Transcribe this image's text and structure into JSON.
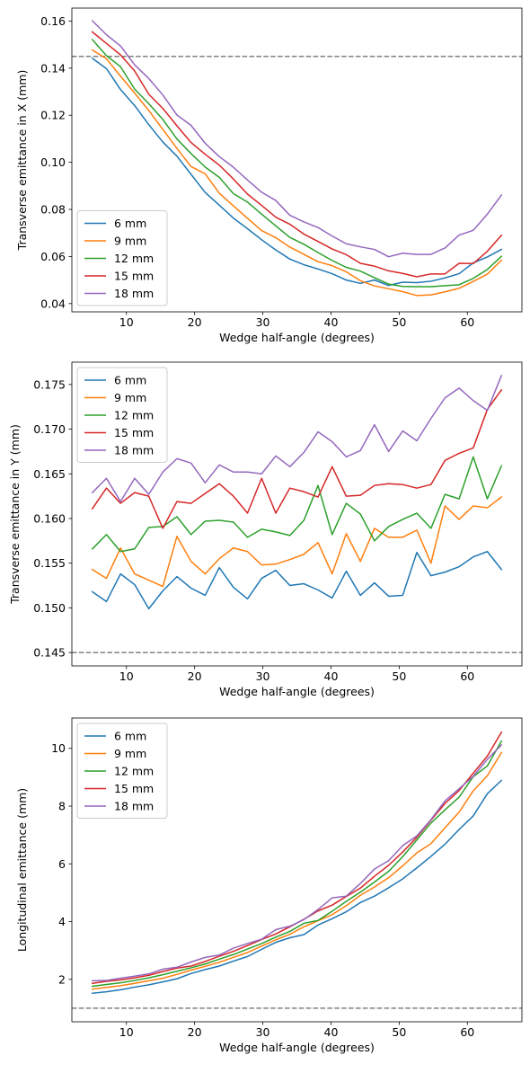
{
  "chart_data": [
    {
      "type": "line",
      "xlabel": "Wedge half-angle (degrees)",
      "ylabel": "Transverse emittance in X (mm)",
      "xlim": [
        2.0,
        68.0
      ],
      "ylim": [
        0.0365,
        0.1655
      ],
      "xticks": [
        10,
        20,
        30,
        40,
        50,
        60
      ],
      "yticks": [
        0.04,
        0.06,
        0.08,
        0.1,
        0.12,
        0.14,
        0.16
      ],
      "ytick_labels": [
        "0.04",
        "0.06",
        "0.08",
        "0.10",
        "0.12",
        "0.14",
        "0.16"
      ],
      "grid": false,
      "legend_position": "lower-left",
      "hline": 0.145,
      "x": [
        5,
        7.07,
        9.14,
        11.21,
        13.28,
        15.34,
        17.41,
        19.48,
        21.55,
        23.62,
        25.69,
        27.76,
        29.83,
        31.9,
        33.97,
        36.03,
        38.1,
        40.17,
        42.24,
        44.31,
        46.38,
        48.45,
        50.52,
        52.59,
        54.66,
        56.72,
        58.79,
        60.86,
        62.93,
        65
      ],
      "series": [
        {
          "name": "6 mm",
          "color": "#1f77b4",
          "values": [
            0.1442,
            0.1398,
            0.1309,
            0.1241,
            0.116,
            0.1086,
            0.1026,
            0.0949,
            0.0872,
            0.0818,
            0.0763,
            0.0718,
            0.0671,
            0.0628,
            0.0589,
            0.0565,
            0.0547,
            0.0527,
            0.05,
            0.0486,
            0.05,
            0.0477,
            0.0491,
            0.0489,
            0.0495,
            0.0509,
            0.0527,
            0.0573,
            0.0598,
            0.063
          ]
        },
        {
          "name": "9 mm",
          "color": "#ff7f0e",
          "values": [
            0.1477,
            0.144,
            0.1366,
            0.1294,
            0.122,
            0.114,
            0.1059,
            0.0982,
            0.0951,
            0.0869,
            0.0815,
            0.0762,
            0.071,
            0.068,
            0.064,
            0.0609,
            0.0578,
            0.0561,
            0.0535,
            0.0497,
            0.0475,
            0.0463,
            0.0451,
            0.0434,
            0.0437,
            0.045,
            0.0465,
            0.0494,
            0.0525,
            0.0584
          ]
        },
        {
          "name": "12 mm",
          "color": "#2ca02c",
          "values": [
            0.1521,
            0.1453,
            0.1406,
            0.1311,
            0.1249,
            0.1182,
            0.1099,
            0.1037,
            0.098,
            0.0936,
            0.0867,
            0.0831,
            0.078,
            0.073,
            0.0681,
            0.0652,
            0.0617,
            0.0583,
            0.0554,
            0.0538,
            0.051,
            0.0483,
            0.0473,
            0.0472,
            0.0472,
            0.0476,
            0.048,
            0.0507,
            0.0545,
            0.0601
          ]
        },
        {
          "name": "15 mm",
          "color": "#d62728",
          "values": [
            0.1554,
            0.1505,
            0.1456,
            0.1388,
            0.1289,
            0.1229,
            0.1155,
            0.1084,
            0.1034,
            0.0988,
            0.0929,
            0.0865,
            0.0817,
            0.0767,
            0.0737,
            0.0695,
            0.0664,
            0.0632,
            0.0608,
            0.0571,
            0.0559,
            0.0539,
            0.0528,
            0.0514,
            0.0526,
            0.0526,
            0.0571,
            0.057,
            0.0622,
            0.069
          ]
        },
        {
          "name": "18 mm",
          "color": "#9467bd",
          "values": [
            0.1601,
            0.1542,
            0.1494,
            0.1414,
            0.1356,
            0.1286,
            0.1201,
            0.1157,
            0.1081,
            0.1024,
            0.0979,
            0.0925,
            0.0873,
            0.0838,
            0.0775,
            0.0747,
            0.0723,
            0.0687,
            0.0654,
            0.0641,
            0.063,
            0.0599,
            0.0614,
            0.0609,
            0.0609,
            0.0636,
            0.0691,
            0.0711,
            0.078,
            0.0861
          ]
        }
      ]
    },
    {
      "type": "line",
      "xlabel": "Wedge half-angle (degrees)",
      "ylabel": "Transverse emittance in Y (mm)",
      "xlim": [
        2.0,
        68.0
      ],
      "ylim": [
        0.1435,
        0.1775
      ],
      "xticks": [
        10,
        20,
        30,
        40,
        50,
        60
      ],
      "yticks": [
        0.145,
        0.15,
        0.155,
        0.16,
        0.165,
        0.17,
        0.175
      ],
      "ytick_labels": [
        "0.145",
        "0.150",
        "0.155",
        "0.160",
        "0.165",
        "0.170",
        "0.175"
      ],
      "grid": false,
      "legend_position": "upper-left",
      "hline": 0.145,
      "x": [
        5,
        7.07,
        9.14,
        11.21,
        13.28,
        15.34,
        17.41,
        19.48,
        21.55,
        23.62,
        25.69,
        27.76,
        29.83,
        31.9,
        33.97,
        36.03,
        38.1,
        40.17,
        42.24,
        44.31,
        46.38,
        48.45,
        50.52,
        52.59,
        54.66,
        56.72,
        58.79,
        60.86,
        62.93,
        65
      ],
      "series": [
        {
          "name": "6 mm",
          "color": "#1f77b4",
          "values": [
            0.1518,
            0.1507,
            0.1538,
            0.1526,
            0.1499,
            0.1519,
            0.1535,
            0.1522,
            0.1514,
            0.1545,
            0.1523,
            0.151,
            0.1533,
            0.1542,
            0.1525,
            0.1527,
            0.152,
            0.1511,
            0.1541,
            0.1514,
            0.1528,
            0.1513,
            0.1514,
            0.1562,
            0.1536,
            0.154,
            0.1546,
            0.1557,
            0.1563,
            0.1543
          ]
        },
        {
          "name": "9 mm",
          "color": "#ff7f0e",
          "values": [
            0.1543,
            0.1533,
            0.1567,
            0.1538,
            0.1531,
            0.1524,
            0.158,
            0.1552,
            0.1538,
            0.1555,
            0.1567,
            0.1563,
            0.1548,
            0.1549,
            0.1554,
            0.156,
            0.1573,
            0.1538,
            0.1583,
            0.1552,
            0.1589,
            0.1579,
            0.1579,
            0.1587,
            0.155,
            0.1614,
            0.1599,
            0.1614,
            0.1612,
            0.1624
          ]
        },
        {
          "name": "12 mm",
          "color": "#2ca02c",
          "values": [
            0.1566,
            0.1582,
            0.1563,
            0.1566,
            0.159,
            0.1591,
            0.1602,
            0.1582,
            0.1597,
            0.1598,
            0.1596,
            0.1579,
            0.1588,
            0.1585,
            0.1581,
            0.1598,
            0.1637,
            0.1582,
            0.1617,
            0.1605,
            0.1575,
            0.1591,
            0.1599,
            0.1606,
            0.1589,
            0.1627,
            0.1622,
            0.1669,
            0.1622,
            0.1659
          ]
        },
        {
          "name": "15 mm",
          "color": "#d62728",
          "values": [
            0.1611,
            0.1634,
            0.1617,
            0.1629,
            0.1625,
            0.1589,
            0.1619,
            0.1617,
            0.1628,
            0.1639,
            0.1625,
            0.1606,
            0.1645,
            0.1606,
            0.1634,
            0.163,
            0.1624,
            0.1658,
            0.1625,
            0.1626,
            0.1637,
            0.1639,
            0.1638,
            0.1634,
            0.1638,
            0.1665,
            0.1673,
            0.1679,
            0.1722,
            0.1744
          ]
        },
        {
          "name": "18 mm",
          "color": "#9467bd",
          "values": [
            0.1629,
            0.1645,
            0.1619,
            0.1645,
            0.1627,
            0.1652,
            0.1667,
            0.1662,
            0.164,
            0.166,
            0.1652,
            0.1652,
            0.165,
            0.167,
            0.1658,
            0.1674,
            0.1697,
            0.1686,
            0.1669,
            0.1676,
            0.1705,
            0.1675,
            0.1698,
            0.1687,
            0.1712,
            0.1735,
            0.1746,
            0.1732,
            0.1721,
            0.176
          ]
        }
      ]
    },
    {
      "type": "line",
      "xlabel": "Wedge half-angle (degrees)",
      "ylabel": "Longitudinal emittance (mm)",
      "xlim": [
        2.0,
        68.0
      ],
      "ylim": [
        0.53,
        11.05
      ],
      "xticks": [
        10,
        20,
        30,
        40,
        50,
        60
      ],
      "yticks": [
        2,
        4,
        6,
        8,
        10
      ],
      "ytick_labels": [
        "2",
        "4",
        "6",
        "8",
        "10"
      ],
      "grid": false,
      "legend_position": "upper-left",
      "hline": 1.0,
      "x": [
        5,
        7.07,
        9.14,
        11.21,
        13.28,
        15.34,
        17.41,
        19.48,
        21.55,
        23.62,
        25.69,
        27.76,
        29.83,
        31.9,
        33.97,
        36.03,
        38.1,
        40.17,
        42.24,
        44.31,
        46.38,
        48.45,
        50.52,
        52.59,
        54.66,
        56.72,
        58.79,
        60.86,
        62.93,
        65
      ],
      "series": [
        {
          "name": "6 mm",
          "color": "#1f77b4",
          "values": [
            1.52,
            1.57,
            1.64,
            1.73,
            1.81,
            1.91,
            2.02,
            2.2,
            2.34,
            2.46,
            2.63,
            2.79,
            3.04,
            3.28,
            3.44,
            3.55,
            3.88,
            4.1,
            4.34,
            4.66,
            4.88,
            5.17,
            5.48,
            5.86,
            6.26,
            6.68,
            7.19,
            7.66,
            8.43,
            8.89
          ]
        },
        {
          "name": "9 mm",
          "color": "#ff7f0e",
          "values": [
            1.66,
            1.72,
            1.78,
            1.86,
            1.95,
            2.04,
            2.17,
            2.32,
            2.45,
            2.59,
            2.76,
            2.93,
            3.15,
            3.37,
            3.56,
            3.82,
            4.03,
            4.24,
            4.55,
            4.91,
            5.2,
            5.52,
            5.93,
            6.38,
            6.7,
            7.25,
            7.79,
            8.53,
            9.05,
            9.85
          ]
        },
        {
          "name": "12 mm",
          "color": "#2ca02c",
          "values": [
            1.76,
            1.82,
            1.88,
            1.96,
            2.05,
            2.16,
            2.28,
            2.4,
            2.53,
            2.7,
            2.86,
            3.05,
            3.24,
            3.46,
            3.66,
            3.94,
            4.04,
            4.36,
            4.7,
            5.02,
            5.37,
            5.74,
            6.25,
            6.83,
            7.41,
            7.87,
            8.31,
            9.02,
            9.39,
            10.25
          ]
        },
        {
          "name": "15 mm",
          "color": "#d62728",
          "values": [
            1.86,
            1.93,
            1.98,
            2.05,
            2.14,
            2.27,
            2.39,
            2.46,
            2.62,
            2.8,
            2.97,
            3.17,
            3.38,
            3.57,
            3.82,
            4.08,
            4.37,
            4.57,
            4.87,
            5.16,
            5.57,
            5.95,
            6.41,
            6.92,
            7.51,
            8.09,
            8.54,
            9.14,
            9.73,
            10.56
          ]
        },
        {
          "name": "18 mm",
          "color": "#9467bd",
          "values": [
            1.95,
            1.96,
            2.04,
            2.11,
            2.19,
            2.35,
            2.42,
            2.6,
            2.76,
            2.84,
            3.08,
            3.24,
            3.39,
            3.72,
            3.84,
            4.07,
            4.42,
            4.82,
            4.88,
            5.32,
            5.82,
            6.11,
            6.63,
            6.97,
            7.53,
            8.18,
            8.6,
            9.03,
            9.62,
            10.12
          ]
        }
      ]
    }
  ]
}
